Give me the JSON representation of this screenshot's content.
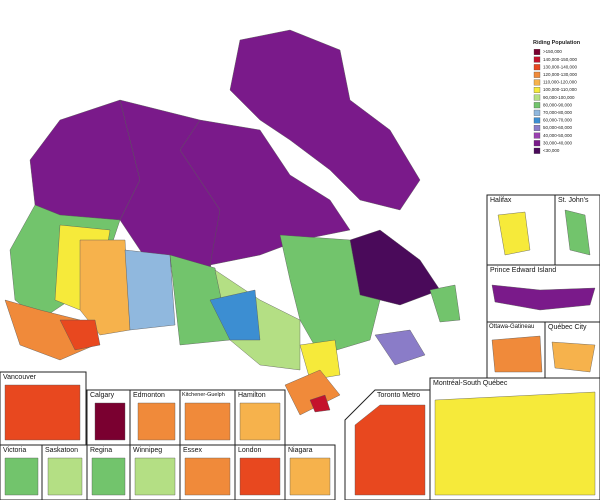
{
  "legend": {
    "title": "Riding Population",
    "items": [
      {
        "label": ">150,000",
        "color": "#7a0030"
      },
      {
        "label": "140,000-150,000",
        "color": "#c4122c"
      },
      {
        "label": "130,000-140,000",
        "color": "#e8481f"
      },
      {
        "label": "120,000-130,000",
        "color": "#f08a3a"
      },
      {
        "label": "110,000-120,000",
        "color": "#f6b24c"
      },
      {
        "label": "100,000-110,000",
        "color": "#f6ea3a"
      },
      {
        "label": "90,000-100,000",
        "color": "#b4df84"
      },
      {
        "label": "80,000-90,000",
        "color": "#72c46c"
      },
      {
        "label": "70,000-80,000",
        "color": "#90b8de"
      },
      {
        "label": "60,000-70,000",
        "color": "#3c8ed2"
      },
      {
        "label": "50,000-60,000",
        "color": "#8a7cc8"
      },
      {
        "label": "40,000-50,000",
        "color": "#9a40b0"
      },
      {
        "label": "30,000-40,000",
        "color": "#7a1a8a"
      },
      {
        "label": "<30,000",
        "color": "#4a0a5a"
      }
    ]
  },
  "insets": [
    {
      "label": "Halifax"
    },
    {
      "label": "St. John's"
    },
    {
      "label": "Prince Edward Island"
    },
    {
      "label": "Ottawa-Gatineau"
    },
    {
      "label": "Québec City"
    },
    {
      "label": "Vancouver"
    },
    {
      "label": "Calgary"
    },
    {
      "label": "Edmonton"
    },
    {
      "label": "Kitchener-Guelph"
    },
    {
      "label": "Hamilton"
    },
    {
      "label": "Toronto Metro"
    },
    {
      "label": "Montréal-South Québec"
    },
    {
      "label": "Victoria"
    },
    {
      "label": "Saskatoon"
    },
    {
      "label": "Regina"
    },
    {
      "label": "Winnipeg"
    },
    {
      "label": "Essex"
    },
    {
      "label": "London"
    },
    {
      "label": "Niagara"
    }
  ]
}
